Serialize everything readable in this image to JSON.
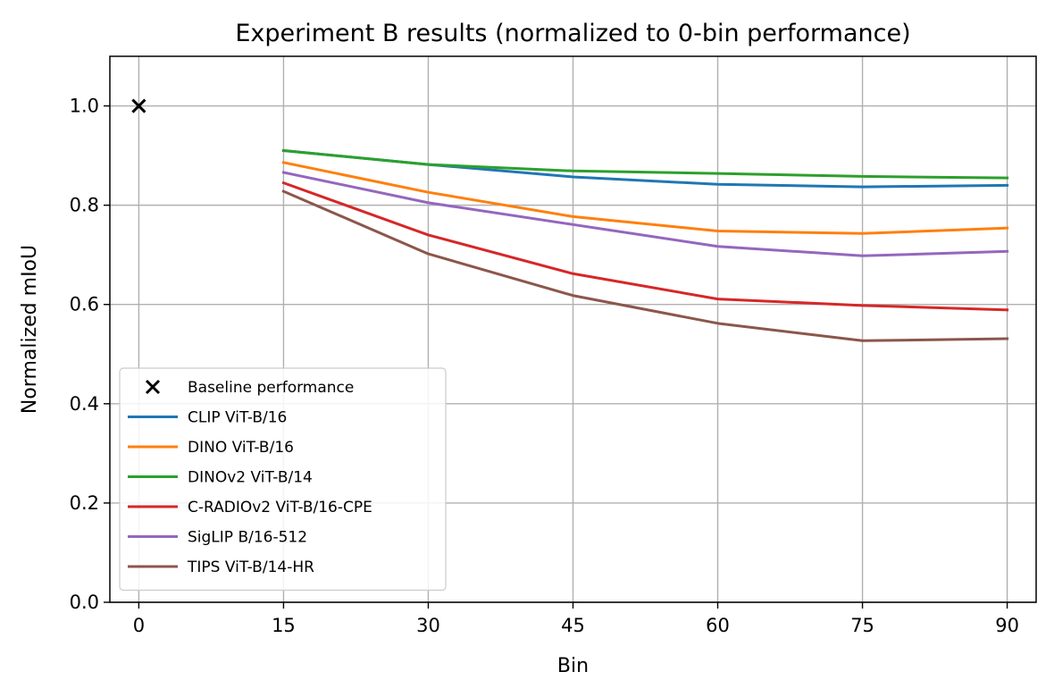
{
  "chart_data": {
    "type": "line",
    "title": "Experiment B results (normalized to 0-bin performance)",
    "xlabel": "Bin",
    "ylabel": "Normalized mIoU",
    "xlim": [
      -3,
      93
    ],
    "ylim": [
      0.0,
      1.1
    ],
    "xticks": [
      0,
      15,
      30,
      45,
      60,
      75,
      90
    ],
    "xtick_labels": [
      "0",
      "15",
      "30",
      "45",
      "60",
      "75",
      "90"
    ],
    "yticks": [
      0.0,
      0.2,
      0.4,
      0.6,
      0.8,
      1.0
    ],
    "ytick_labels": [
      "0.0",
      "0.2",
      "0.4",
      "0.6",
      "0.8",
      "1.0"
    ],
    "grid": true,
    "legend_position": "lower-left",
    "baseline": {
      "name": "Baseline performance",
      "x": 0,
      "y": 1.0,
      "marker": "x",
      "color": "#000000"
    },
    "x": [
      15,
      30,
      45,
      60,
      75,
      90
    ],
    "series": [
      {
        "name": "CLIP ViT-B/16",
        "color": "#1f77b4",
        "values": [
          0.91,
          0.882,
          0.857,
          0.842,
          0.837,
          0.84
        ]
      },
      {
        "name": "DINO ViT-B/16",
        "color": "#ff7f0e",
        "values": [
          0.886,
          0.826,
          0.777,
          0.748,
          0.743,
          0.754
        ]
      },
      {
        "name": "DINOv2 ViT-B/14",
        "color": "#2ca02c",
        "values": [
          0.91,
          0.882,
          0.869,
          0.864,
          0.858,
          0.855
        ]
      },
      {
        "name": "C-RADIOv2 ViT-B/16-CPE",
        "color": "#d62728",
        "values": [
          0.845,
          0.74,
          0.662,
          0.611,
          0.598,
          0.589
        ]
      },
      {
        "name": "SigLIP B/16-512",
        "color": "#9467bd",
        "values": [
          0.866,
          0.805,
          0.761,
          0.717,
          0.698,
          0.707
        ]
      },
      {
        "name": "TIPS ViT-B/14-HR",
        "color": "#8c564b",
        "values": [
          0.828,
          0.702,
          0.618,
          0.562,
          0.527,
          0.531
        ]
      }
    ]
  }
}
